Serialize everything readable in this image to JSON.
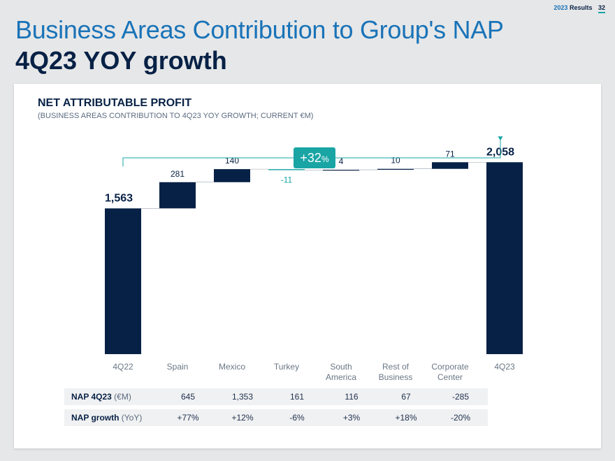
{
  "header": {
    "year": "2023",
    "label": "Results",
    "page": "32"
  },
  "title": "Business Areas Contribution to Group's NAP",
  "subtitle": "4Q23 YOY growth",
  "chart_title": "NET ATTRIBUTABLE PROFIT",
  "chart_subtitle": "(BUSINESS AREAS CONTRIBUTION TO 4Q23 YOY GROWTH; CURRENT €M)",
  "colors": {
    "dark": "#072146",
    "teal": "#1aa5a5",
    "blue": "#1973b8"
  },
  "chart_data": {
    "type": "bar",
    "subtype": "waterfall",
    "categories": [
      "4Q22",
      "Spain",
      "Mexico",
      "Turkey",
      "South America",
      "Rest of Business",
      "Corporate Center",
      "4Q23"
    ],
    "category_lines": [
      [
        "4Q22"
      ],
      [
        "Spain"
      ],
      [
        "Mexico"
      ],
      [
        "Turkey"
      ],
      [
        "South",
        "America"
      ],
      [
        "Rest of",
        "Business"
      ],
      [
        "Corporate",
        "Center"
      ],
      [
        "4Q23"
      ]
    ],
    "values": [
      1563,
      281,
      140,
      -11,
      4,
      10,
      71,
      2058
    ],
    "value_labels": [
      "1,563",
      "281",
      "140",
      "-11",
      "4",
      "10",
      "71",
      "2,058"
    ],
    "totals": [
      true,
      false,
      false,
      false,
      false,
      false,
      false,
      true
    ],
    "growth_label": "+32",
    "growth_unit": "%"
  },
  "table": {
    "rows": [
      {
        "label": "NAP 4Q23",
        "unit": " (€M)",
        "values": [
          "645",
          "1,353",
          "161",
          "116",
          "67",
          "-285"
        ]
      },
      {
        "label": "NAP growth",
        "unit": " (YoY)",
        "values": [
          "+77%",
          "+12%",
          "-6%",
          "+3%",
          "+18%",
          "-20%"
        ]
      }
    ]
  }
}
